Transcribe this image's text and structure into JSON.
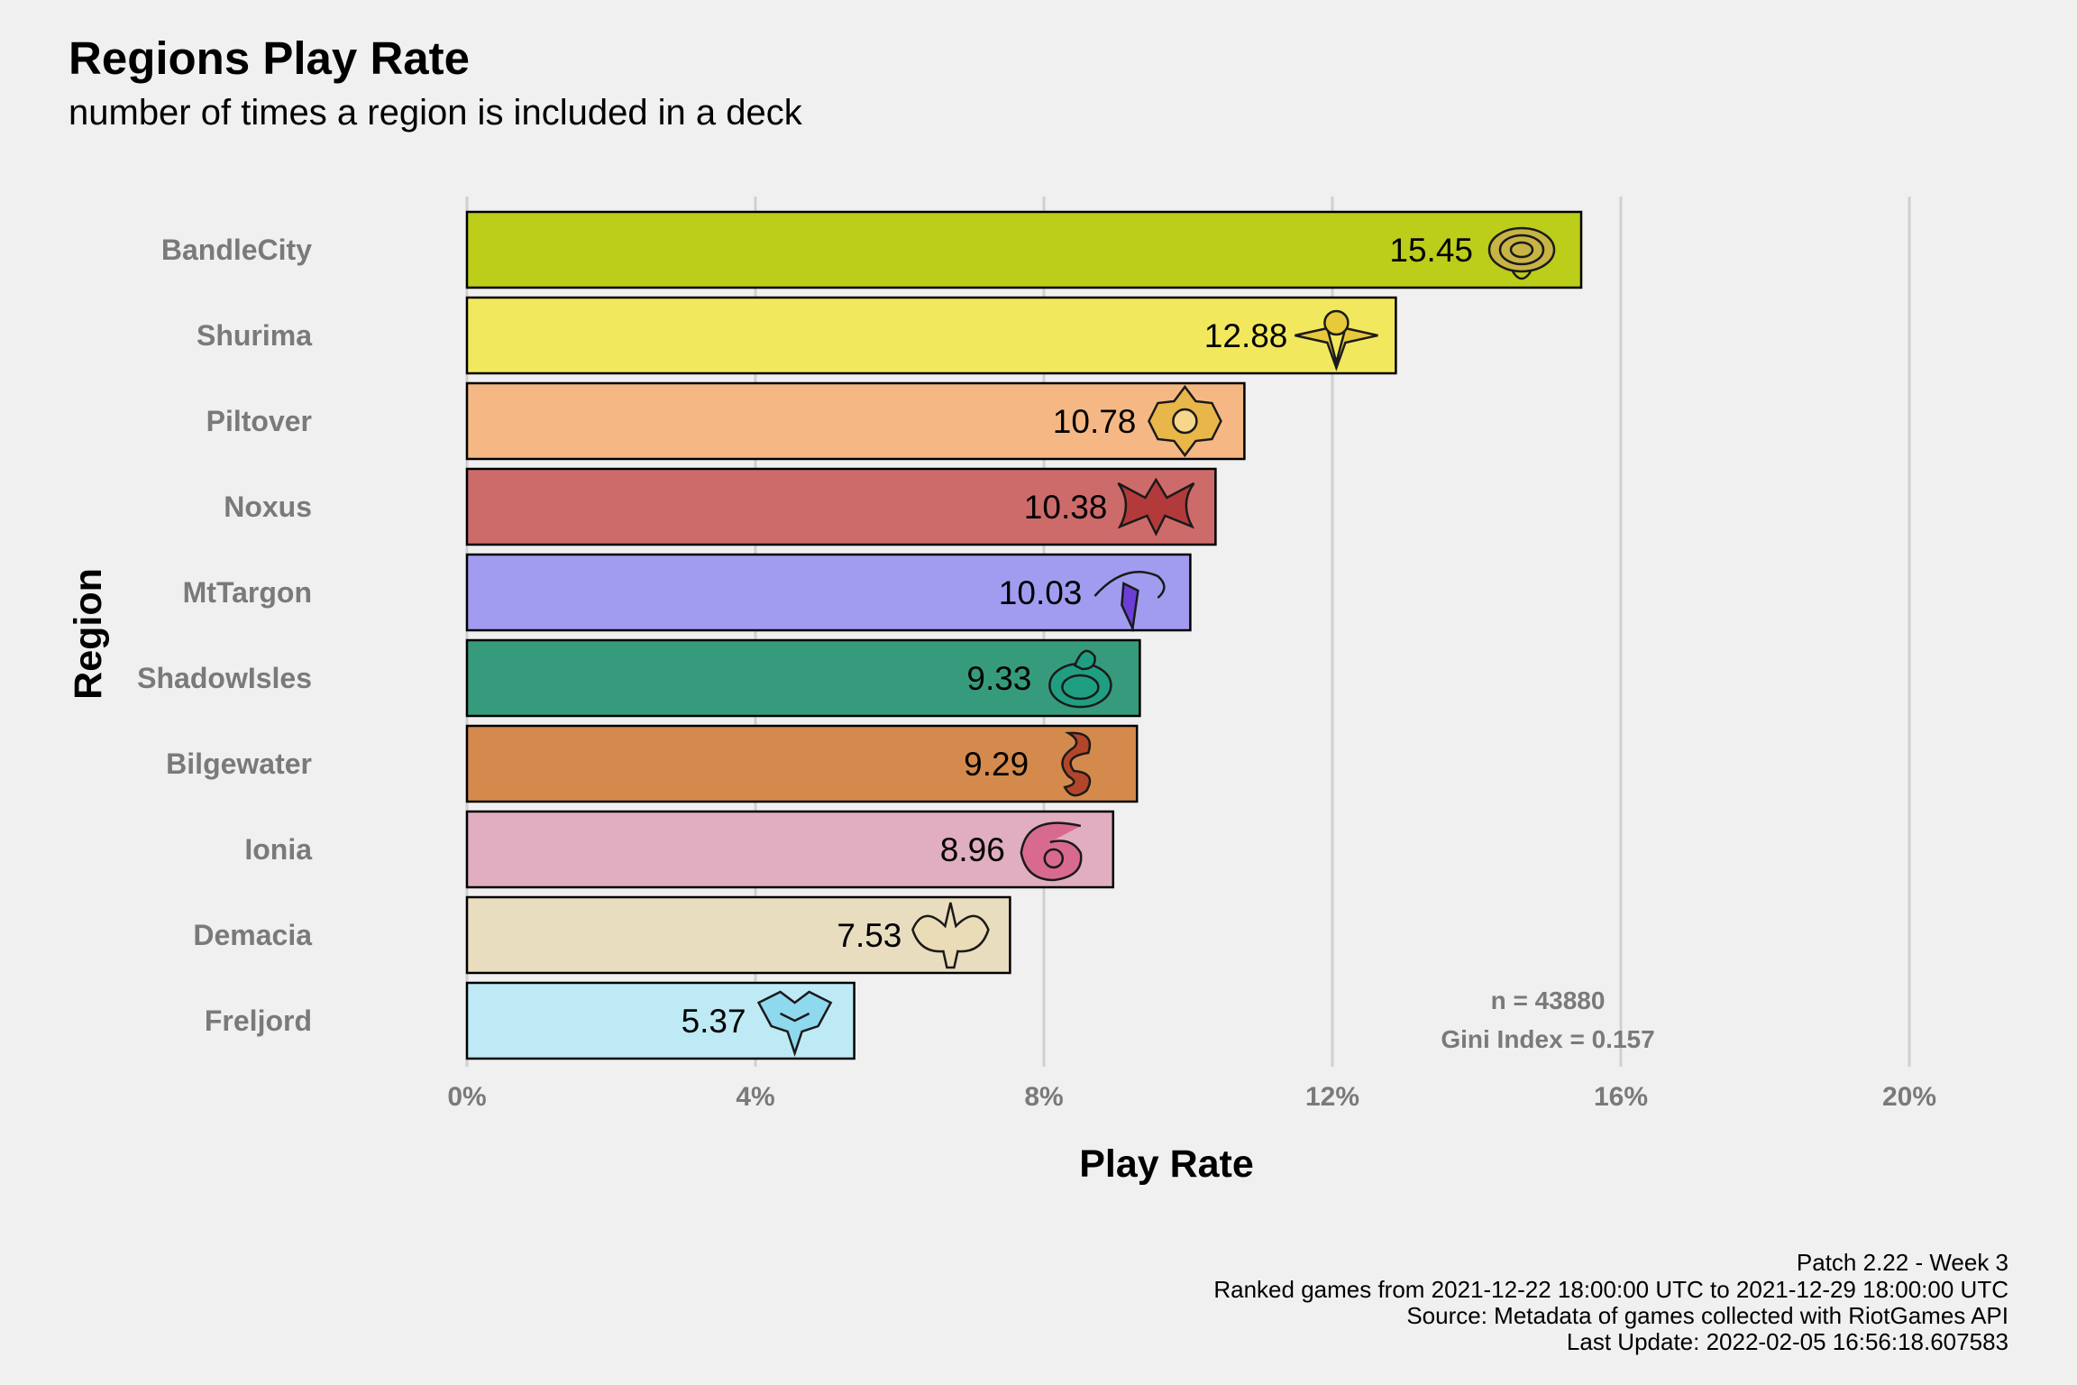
{
  "header": {
    "title": "Regions Play Rate",
    "subtitle": "number of times a region is included in a deck"
  },
  "chart_data": {
    "type": "bar",
    "orientation": "horizontal",
    "title": "Regions Play Rate",
    "subtitle": "number of times a region is included in a deck",
    "xlabel": "Play Rate",
    "ylabel": "Region",
    "xlim": [
      0,
      20
    ],
    "x_ticks": [
      "0%",
      "4%",
      "8%",
      "12%",
      "16%",
      "20%"
    ],
    "x_tick_values": [
      0,
      4,
      8,
      12,
      16,
      20
    ],
    "grid": true,
    "legend": "none",
    "categories": [
      "BandleCity",
      "Shurima",
      "Piltover",
      "Noxus",
      "MtTargon",
      "ShadowIsles",
      "Bilgewater",
      "Ionia",
      "Demacia",
      "Freljord"
    ],
    "values": [
      15.45,
      12.88,
      10.78,
      10.38,
      10.03,
      9.33,
      9.29,
      8.96,
      7.53,
      5.37
    ],
    "value_labels": [
      "15.45",
      "12.88",
      "10.78",
      "10.38",
      "10.03",
      "9.33",
      "9.29",
      "8.96",
      "7.53",
      "5.37"
    ],
    "colors": [
      "#bccd1a",
      "#f2e85e",
      "#f5b884",
      "#cd6b6b",
      "#a29cf0",
      "#369b7c",
      "#d48a4c",
      "#e0aec0",
      "#e8ddbf",
      "#bdeaf5"
    ],
    "icons": [
      "bandlecity-emblem-icon",
      "shurima-emblem-icon",
      "piltover-emblem-icon",
      "noxus-emblem-icon",
      "mttargon-emblem-icon",
      "shadowisles-emblem-icon",
      "bilgewater-emblem-icon",
      "ionia-emblem-icon",
      "demacia-emblem-icon",
      "freljord-emblem-icon"
    ],
    "icon_colors": [
      "#c8b445",
      "#e8c93a",
      "#e9b64a",
      "#b33a3a",
      "#6b3fd6",
      "#1f9e82",
      "#b3452a",
      "#d96a8f",
      "#eadcb6",
      "#8fd9ee"
    ],
    "annotations": [
      "n = 43880",
      "Gini Index = 0.157"
    ]
  },
  "caption": {
    "line1": "Patch 2.22 - Week 3",
    "line2": "Ranked games from 2021-12-22 18:00:00 UTC to 2021-12-29 18:00:00 UTC",
    "line3": "Source: Metadata of games collected with RiotGames API",
    "line4": "Last Update: 2022-02-05 16:56:18.607583"
  }
}
